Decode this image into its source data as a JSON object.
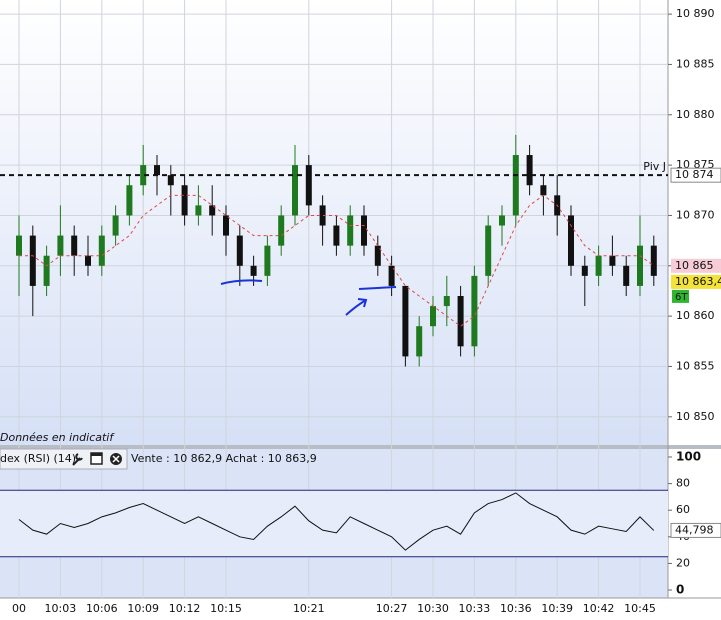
{
  "chart_data": [
    {
      "type": "candlestick",
      "categories": [
        "00",
        null,
        null,
        "10:03",
        null,
        null,
        "10:06",
        null,
        null,
        "10:09",
        null,
        null,
        "10:12",
        null,
        null,
        "10:15",
        null,
        null,
        null,
        null,
        null,
        "10:21",
        null,
        null,
        null,
        null,
        null,
        "10:27",
        null,
        null,
        "10:30",
        null,
        null,
        "10:33",
        null,
        null,
        "10:36",
        null,
        null,
        "10:39",
        null,
        null,
        "10:42",
        null,
        null,
        "10:45",
        null
      ],
      "open": [
        10866,
        10868,
        10863,
        10866,
        10868,
        10866,
        10865,
        10868,
        10870,
        10873,
        10875,
        10874,
        10873,
        10870,
        10871,
        10870,
        10868,
        10865,
        10864,
        10867,
        10870,
        10875,
        10871,
        10869,
        10867,
        10870,
        10867,
        10865,
        10863,
        10856,
        10859,
        10861,
        10862,
        10857,
        10864,
        10869,
        10870,
        10876,
        10873,
        10872,
        10870,
        10865,
        10864,
        10866,
        10865,
        10863,
        10867
      ],
      "high": [
        10870,
        10869,
        10867,
        10871,
        10869,
        10868,
        10869,
        10871,
        10874,
        10877,
        10876,
        10875,
        10874,
        10873,
        10873,
        10871,
        10869,
        10866,
        10868,
        10871,
        10877,
        10876,
        10872,
        10870,
        10871,
        10871,
        10868,
        10866,
        10863,
        10860,
        10862,
        10864,
        10863,
        10865,
        10870,
        10871,
        10878,
        10877,
        10874,
        10874,
        10871,
        10866,
        10867,
        10868,
        10866,
        10870,
        10868
      ],
      "low": [
        10862,
        10860,
        10862,
        10864,
        10864,
        10864,
        10864,
        10867,
        10869,
        10872,
        10872,
        10870,
        10869,
        10869,
        10868,
        10866,
        10863,
        10863,
        10863,
        10866,
        10869,
        10870,
        10867,
        10866,
        10866,
        10866,
        10864,
        10862,
        10855,
        10855,
        10858,
        10859,
        10856,
        10856,
        10863,
        10867,
        10869,
        10872,
        10870,
        10868,
        10864,
        10861,
        10863,
        10864,
        10862,
        10862,
        10863
      ],
      "close": [
        10868,
        10863,
        10866,
        10868,
        10866,
        10865,
        10868,
        10870,
        10873,
        10875,
        10874,
        10873,
        10870,
        10871,
        10870,
        10868,
        10865,
        10864,
        10867,
        10870,
        10875,
        10871,
        10869,
        10867,
        10870,
        10867,
        10865,
        10863,
        10856,
        10859,
        10861,
        10862,
        10857,
        10864,
        10869,
        10870,
        10876,
        10873,
        10872,
        10870,
        10865,
        10864,
        10866,
        10865,
        10863,
        10867,
        10864
      ],
      "up_color": "#1f7a1f",
      "down_color": "#111111",
      "moving_average": {
        "color": "#e04848",
        "values": [
          10866,
          10866,
          10865,
          10866,
          10866,
          10866,
          10866,
          10867,
          10868,
          10870,
          10871,
          10872,
          10872,
          10872,
          10871,
          10870,
          10869,
          10868,
          10868,
          10868,
          10869,
          10870,
          10870,
          10870,
          10869,
          10869,
          10867,
          10865,
          10863,
          10862,
          10861,
          10860,
          10859,
          10860,
          10863,
          10866,
          10869,
          10871,
          10872,
          10871,
          10869,
          10867,
          10866,
          10866,
          10866,
          10866,
          10865
        ]
      },
      "ylim": [
        10847.2,
        10891.4
      ],
      "yticks": [
        {
          "value": 10890,
          "label": "10 890"
        },
        {
          "value": 10885,
          "label": "10 885"
        },
        {
          "value": 10880,
          "label": "10 880"
        },
        {
          "value": 10875,
          "label": "10 875"
        },
        {
          "value": 10870,
          "label": "10 870"
        },
        {
          "value": 10865,
          "label": "10 865"
        },
        {
          "value": 10860,
          "label": "10 860"
        },
        {
          "value": 10855,
          "label": "10 855"
        },
        {
          "value": 10850,
          "label": "10 850"
        }
      ],
      "grid": true,
      "pivot": {
        "label": "Piv J",
        "value": 10874,
        "value_label": "10 874"
      },
      "price_markers": [
        {
          "value": 10865,
          "label": "10 865",
          "color": "#f6ccd6"
        },
        {
          "value": 10863.4,
          "label": "10 863,4",
          "color": "#f2e23a"
        }
      ],
      "badge": "6T",
      "note": "Données en indicatif"
    },
    {
      "type": "rsi",
      "title": "dex (RSI) (14)",
      "quote": "Vente : 10 862,9 Achat : 10 863,9",
      "values": [
        53,
        45,
        42,
        50,
        47,
        50,
        55,
        58,
        62,
        65,
        60,
        55,
        50,
        55,
        50,
        45,
        40,
        38,
        48,
        55,
        63,
        52,
        45,
        43,
        55,
        50,
        45,
        40,
        30,
        38,
        45,
        48,
        42,
        58,
        65,
        68,
        73,
        65,
        60,
        55,
        45,
        42,
        48,
        46,
        44,
        55,
        44.798
      ],
      "color": "#111111",
      "ylim": [
        -6,
        106
      ],
      "yticks": [
        100,
        80,
        60,
        40,
        20,
        0
      ],
      "levels": [
        25,
        75
      ],
      "last_value": {
        "value": 44.798,
        "label": "44,798"
      }
    }
  ]
}
